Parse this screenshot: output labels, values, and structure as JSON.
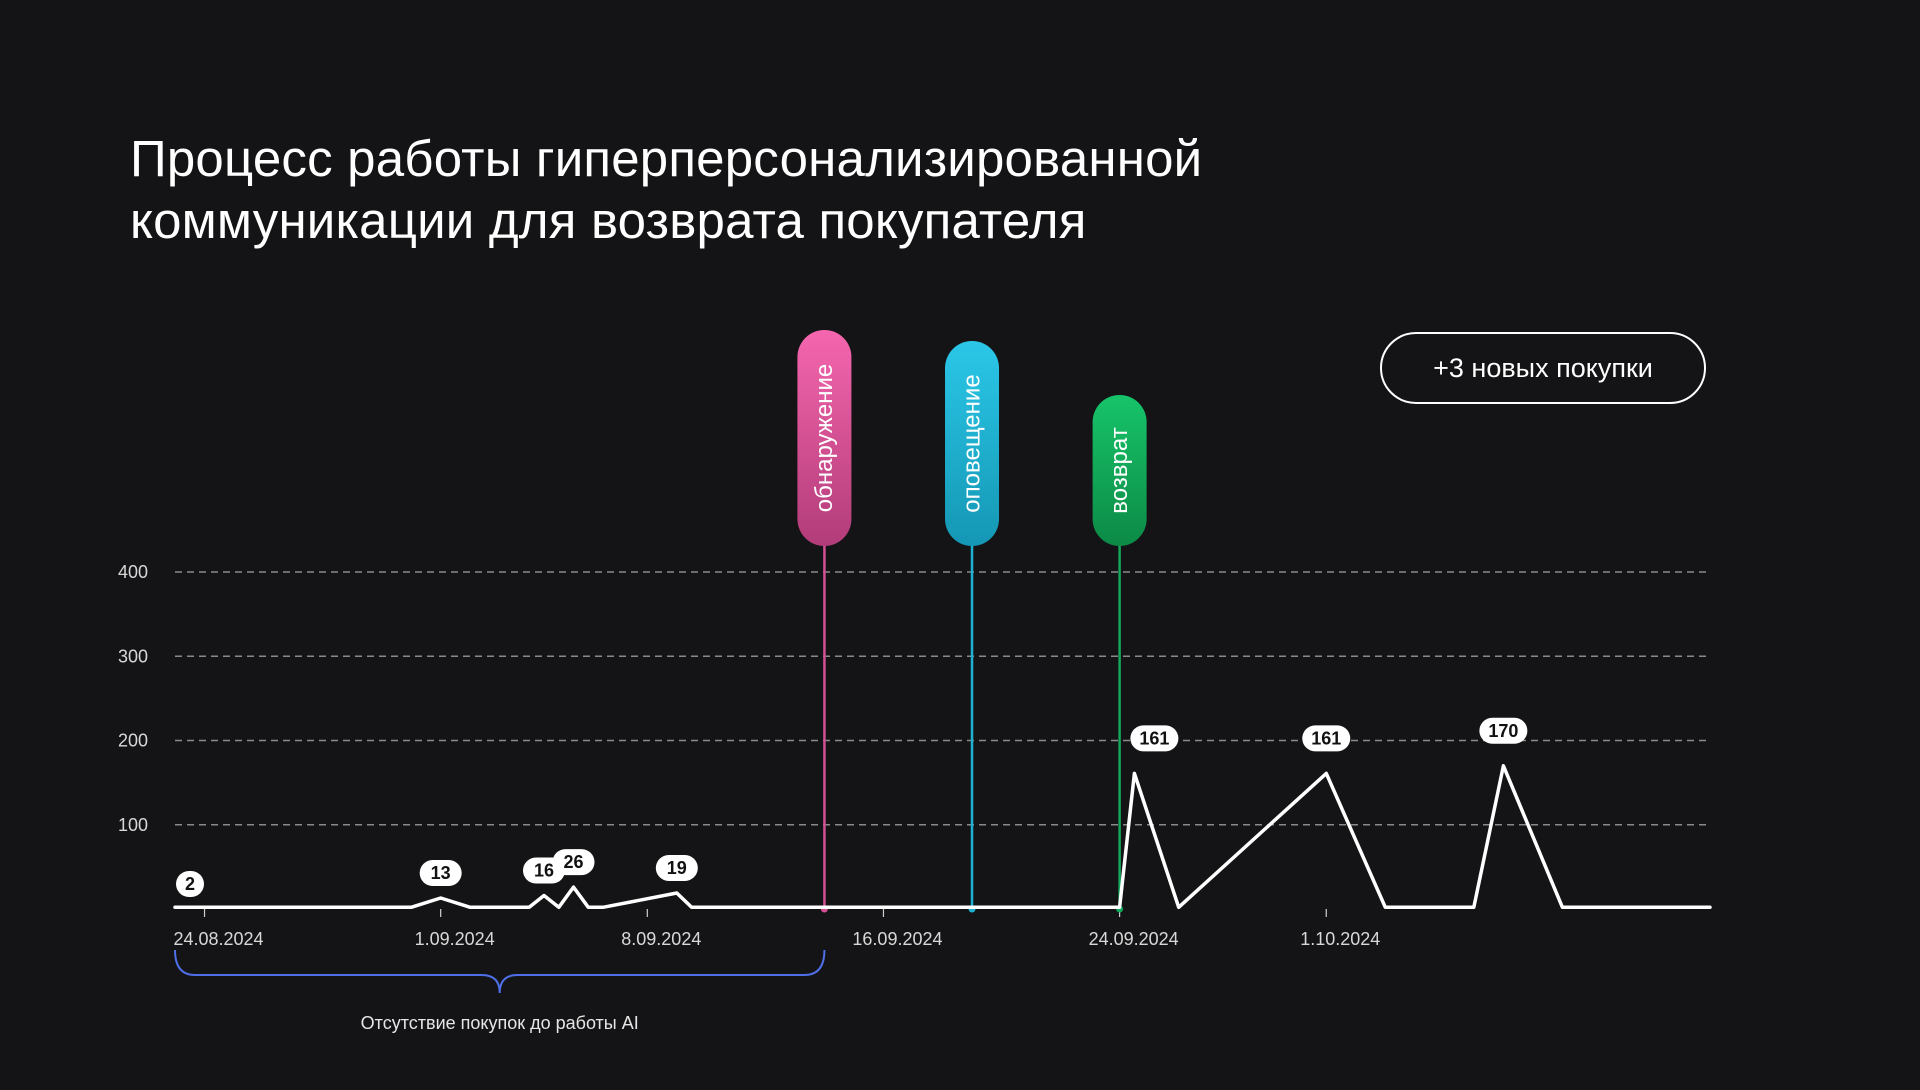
{
  "title": {
    "line1": "Процесс работы гиперперсонализированной",
    "line2": "коммуникации для возврата покупателя"
  },
  "badge": {
    "label": "+3 новых покупки"
  },
  "chart_data": {
    "type": "line",
    "title": "Процесс работы гиперперсонализированной коммуникации для возврата покупателя",
    "xlabel": "",
    "ylabel": "",
    "x_axis": "date",
    "xlim": [
      "2024-08-23",
      "2024-10-14"
    ],
    "ylim": [
      0,
      420
    ],
    "yticks": [
      100,
      200,
      300,
      400
    ],
    "ytick_labels": [
      "100",
      "200",
      "300",
      "400"
    ],
    "xticks": [
      "2024-08-24",
      "2024-09-01",
      "2024-09-08",
      "2024-09-16",
      "2024-09-24",
      "2024-10-01"
    ],
    "xtick_labels": [
      "24.08.2024",
      "1.09.2024",
      "8.09.2024",
      "16.09.2024",
      "24.09.2024",
      "1.10.2024"
    ],
    "grid": "horizontal dashed",
    "line_color": "#ffffff",
    "series": [
      {
        "x": [
          "2024-08-23",
          "2024-08-31",
          "2024-09-01",
          "2024-09-02",
          "2024-09-04",
          "2024-09-04T12:00",
          "2024-09-05",
          "2024-09-05T12:00",
          "2024-09-06",
          "2024-09-06T12:00",
          "2024-09-09",
          "2024-09-09T12:00",
          "2024-09-10",
          "2024-09-24",
          "2024-09-24T12:00",
          "2024-09-26",
          "2024-10-01",
          "2024-10-03",
          "2024-10-06",
          "2024-10-07",
          "2024-10-09",
          "2024-10-14"
        ],
        "values": [
          2,
          2,
          13,
          2,
          2,
          16,
          2,
          26,
          2,
          2,
          19,
          2,
          2,
          2,
          161,
          2,
          161,
          2,
          2,
          170,
          2,
          2
        ]
      }
    ],
    "data_labels": [
      {
        "x": "2024-08-23",
        "value": 2,
        "text": "2"
      },
      {
        "x": "2024-09-01",
        "value": 13,
        "text": "13"
      },
      {
        "x": "2024-09-04T12:00",
        "value": 16,
        "text": "16"
      },
      {
        "x": "2024-09-05T12:00",
        "value": 26,
        "text": "26"
      },
      {
        "x": "2024-09-09",
        "value": 19,
        "text": "19"
      },
      {
        "x": "2024-09-24T12:00",
        "value": 161,
        "text": "161"
      },
      {
        "x": "2024-10-01",
        "value": 161,
        "text": "161"
      },
      {
        "x": "2024-10-07",
        "value": 170,
        "text": "170"
      }
    ],
    "markers": [
      {
        "label": "обнаружение",
        "x": "2024-09-14",
        "color_top": "#f566ae",
        "color_bottom": "#b23c79",
        "line_color": "#d54f93"
      },
      {
        "label": "оповещение",
        "x": "2024-09-19",
        "color_top": "#2bc7e8",
        "color_bottom": "#1497b4",
        "line_color": "#1fb1d2"
      },
      {
        "label": "возврат",
        "x": "2024-09-24",
        "color_top": "#17c46a",
        "color_bottom": "#0c8a46",
        "line_color": "#13a85a"
      }
    ],
    "annotation": {
      "text": "Отсутствие покупок до работы AI",
      "from": "2024-08-23",
      "to": "2024-09-14",
      "color": "#4f6fe8"
    }
  }
}
